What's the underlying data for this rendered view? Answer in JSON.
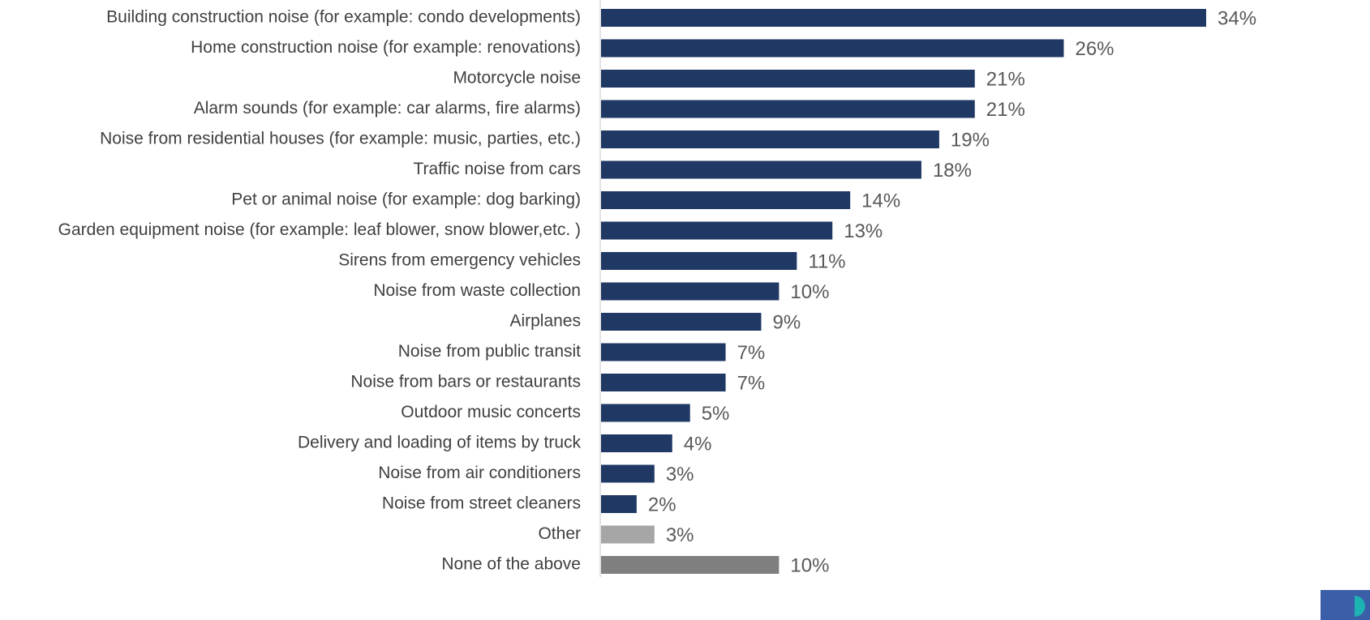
{
  "chart_data": {
    "type": "bar",
    "orientation": "horizontal",
    "categories": [
      "Building construction noise (for example: condo developments)",
      "Home construction noise (for example: renovations)",
      "Motorcycle noise",
      "Alarm sounds (for example: car alarms, fire alarms)",
      "Noise from residential houses (for example: music, parties, etc.)",
      "Traffic noise from cars",
      "Pet or animal noise (for example: dog barking)",
      "Garden equipment noise (for example: leaf blower, snow blower,etc. )",
      "Sirens from emergency vehicles",
      "Noise from waste collection",
      "Airplanes",
      "Noise from public transit",
      "Noise from bars or restaurants",
      "Outdoor music concerts",
      "Delivery and loading of items by truck",
      "Noise from air conditioners",
      "Noise from street cleaners",
      "Other",
      "None of the above"
    ],
    "values": [
      34,
      26,
      21,
      21,
      19,
      18,
      14,
      13,
      11,
      10,
      9,
      7,
      7,
      5,
      4,
      3,
      2,
      3,
      10
    ],
    "value_labels": [
      "34%",
      "26%",
      "21%",
      "21%",
      "19%",
      "18%",
      "14%",
      "13%",
      "11%",
      "10%",
      "9%",
      "7%",
      "7%",
      "5%",
      "4%",
      "3%",
      "2%",
      "3%",
      "10%"
    ],
    "colors": [
      "#1f3864",
      "#1f3864",
      "#1f3864",
      "#1f3864",
      "#1f3864",
      "#1f3864",
      "#1f3864",
      "#1f3864",
      "#1f3864",
      "#1f3864",
      "#1f3864",
      "#1f3864",
      "#1f3864",
      "#1f3864",
      "#1f3864",
      "#1f3864",
      "#1f3864",
      "#a6a6a6",
      "#7f7f7f"
    ]
  }
}
